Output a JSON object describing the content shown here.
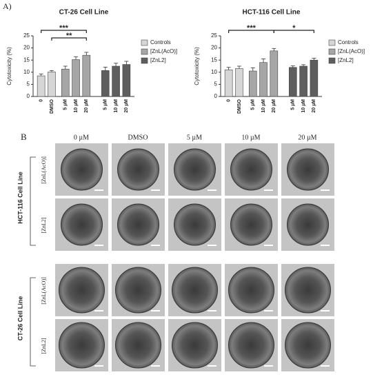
{
  "panel_labels": {
    "a": "A)",
    "b": "B"
  },
  "chart_data": [
    {
      "type": "bar",
      "title": "CT-26 Cell Line",
      "y_label": "Cytotoxicity (%)",
      "categories": [
        "0",
        "DMSO",
        "5 µM",
        "10 µM",
        "20 µM",
        "5 µM",
        "10 µM",
        "20 µM"
      ],
      "series": [
        {
          "name": "Controls",
          "color": "#d6d6d6",
          "values": [
            8.5,
            10.1,
            null,
            null,
            null,
            null,
            null,
            null
          ],
          "errors": [
            0.8,
            0.6,
            null,
            null,
            null,
            null,
            null,
            null
          ]
        },
        {
          "name": "[ZnL(AcO)]",
          "color": "#a6a6a6",
          "values": [
            null,
            null,
            11.3,
            15.2,
            17,
            null,
            null,
            null
          ],
          "errors": [
            null,
            null,
            1.2,
            1.2,
            1.2,
            null,
            null,
            null
          ]
        },
        {
          "name": "[ZnL2]",
          "color": "#5e5e5e",
          "values": [
            null,
            null,
            null,
            null,
            null,
            10.7,
            12.5,
            13.2
          ],
          "errors": [
            null,
            null,
            null,
            null,
            null,
            1.4,
            1.2,
            1.3
          ]
        }
      ],
      "ylim": [
        0,
        25
      ],
      "yticks": [
        0,
        5,
        10,
        15,
        20,
        25
      ],
      "annotations": [
        {
          "label": "***",
          "from": 0,
          "to": 4
        },
        {
          "label": "**",
          "from": 1,
          "to": 4
        }
      ]
    },
    {
      "type": "bar",
      "title": "HCT-116 Cell Line",
      "y_label": "Cytotoxicity (%)",
      "categories": [
        "0",
        "DMSO",
        "5 µM",
        "10 µM",
        "20 µM",
        "5 µM",
        "10 µM",
        "20 µM"
      ],
      "series": [
        {
          "name": "Controls",
          "color": "#d6d6d6",
          "values": [
            11,
            11.5,
            null,
            null,
            null,
            null,
            null,
            null
          ],
          "errors": [
            1,
            1,
            null,
            null,
            null,
            null,
            null,
            null
          ]
        },
        {
          "name": "[ZnL(AcO)]",
          "color": "#a6a6a6",
          "values": [
            null,
            null,
            10.5,
            14,
            18.8,
            null,
            null,
            null
          ],
          "errors": [
            null,
            null,
            1.3,
            1.5,
            1,
            null,
            null,
            null
          ]
        },
        {
          "name": "[ZnL2]",
          "color": "#5e5e5e",
          "values": [
            null,
            null,
            null,
            null,
            null,
            12,
            12.5,
            15
          ],
          "errors": [
            null,
            null,
            null,
            null,
            null,
            0.6,
            0.6,
            0.8
          ]
        }
      ],
      "ylim": [
        0,
        25
      ],
      "yticks": [
        0,
        5,
        10,
        15,
        20,
        25
      ],
      "annotations": [
        {
          "label": "***",
          "from": 0,
          "to": 4
        },
        {
          "label": "*",
          "from": 4,
          "to": 7
        }
      ]
    }
  ],
  "panel_b": {
    "columns": [
      "0 µM",
      "DMSO",
      "5 µM",
      "10 µM",
      "20 µM"
    ],
    "groups": [
      {
        "label": "HCT-116 Cell Line",
        "rows": [
          "[ZnL(AcO)]",
          "[ZnL2]"
        ]
      },
      {
        "label": "CT-26 Cell Line",
        "rows": [
          "[ZnL(AcO)]",
          "[ZnL2]"
        ]
      }
    ]
  }
}
